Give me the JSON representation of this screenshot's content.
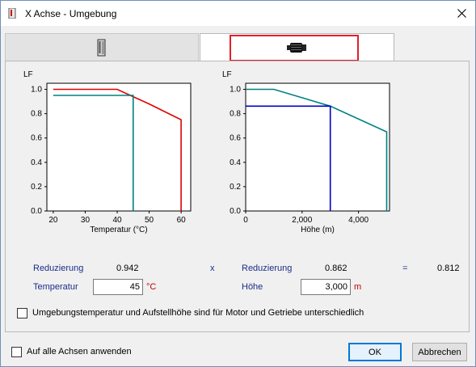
{
  "window": {
    "title": "X Achse - Umgebung"
  },
  "tabs": [
    {
      "icon": "cabinet-icon"
    },
    {
      "icon": "motor-icon"
    }
  ],
  "chart_data": [
    {
      "type": "line",
      "ylabel": "LF",
      "xlabel": "Temperatur (°C)",
      "xlim": [
        18,
        63
      ],
      "ylim": [
        0,
        1.05
      ],
      "xticks": [
        "20",
        "30",
        "40",
        "50",
        "60"
      ],
      "xtick_values": [
        20,
        30,
        40,
        50,
        60
      ],
      "yticks": [
        "0.0",
        "0.2",
        "0.4",
        "0.6",
        "0.8",
        "1.0"
      ],
      "ytick_values": [
        0,
        0.2,
        0.4,
        0.6,
        0.8,
        1.0
      ],
      "series": [
        {
          "color": "#e00000",
          "points": [
            [
              20,
              1.0
            ],
            [
              40,
              1.0
            ],
            [
              45,
              0.94
            ],
            [
              50,
              0.88
            ],
            [
              60,
              0.75
            ],
            [
              60,
              0.0
            ]
          ]
        },
        {
          "color": "#008080",
          "points": [
            [
              20,
              0.95
            ],
            [
              45,
              0.95
            ],
            [
              45,
              0.0
            ]
          ]
        }
      ]
    },
    {
      "type": "line",
      "ylabel": "LF",
      "xlabel": "Höhe (m)",
      "xlim": [
        0,
        5100
      ],
      "ylim": [
        0,
        1.05
      ],
      "xticks": [
        "0",
        "2,000",
        "4,000"
      ],
      "xtick_values": [
        0,
        2000,
        4000
      ],
      "yticks": [
        "0.0",
        "0.2",
        "0.4",
        "0.6",
        "0.8",
        "1.0"
      ],
      "ytick_values": [
        0,
        0.2,
        0.4,
        0.6,
        0.8,
        1.0
      ],
      "series": [
        {
          "color": "#008080",
          "points": [
            [
              0,
              1.0
            ],
            [
              1000,
              1.0
            ],
            [
              3000,
              0.862
            ],
            [
              5000,
              0.65
            ],
            [
              5000,
              0.0
            ]
          ]
        },
        {
          "color": "#0000cc",
          "points": [
            [
              0,
              0.862
            ],
            [
              3000,
              0.862
            ],
            [
              3000,
              0.0
            ]
          ]
        }
      ]
    }
  ],
  "reduction": {
    "label_left": "Reduzierung",
    "value_left": "0.942",
    "times": "x",
    "label_right": "Reduzierung",
    "value_right": "0.862",
    "equals": "=",
    "result": "0.812"
  },
  "inputs": {
    "temperature_label": "Temperatur",
    "temperature_value": "45",
    "temperature_unit": "°C",
    "altitude_label": "Höhe",
    "altitude_value": "3,000",
    "altitude_unit": "m"
  },
  "options": {
    "separate_label": "Umgebungstemperatur und Aufstellhöhe sind für Motor und Getriebe unterschiedlich",
    "apply_all_label": "Auf alle Achsen anwenden"
  },
  "buttons": {
    "ok": "OK",
    "cancel": "Abbrechen"
  }
}
